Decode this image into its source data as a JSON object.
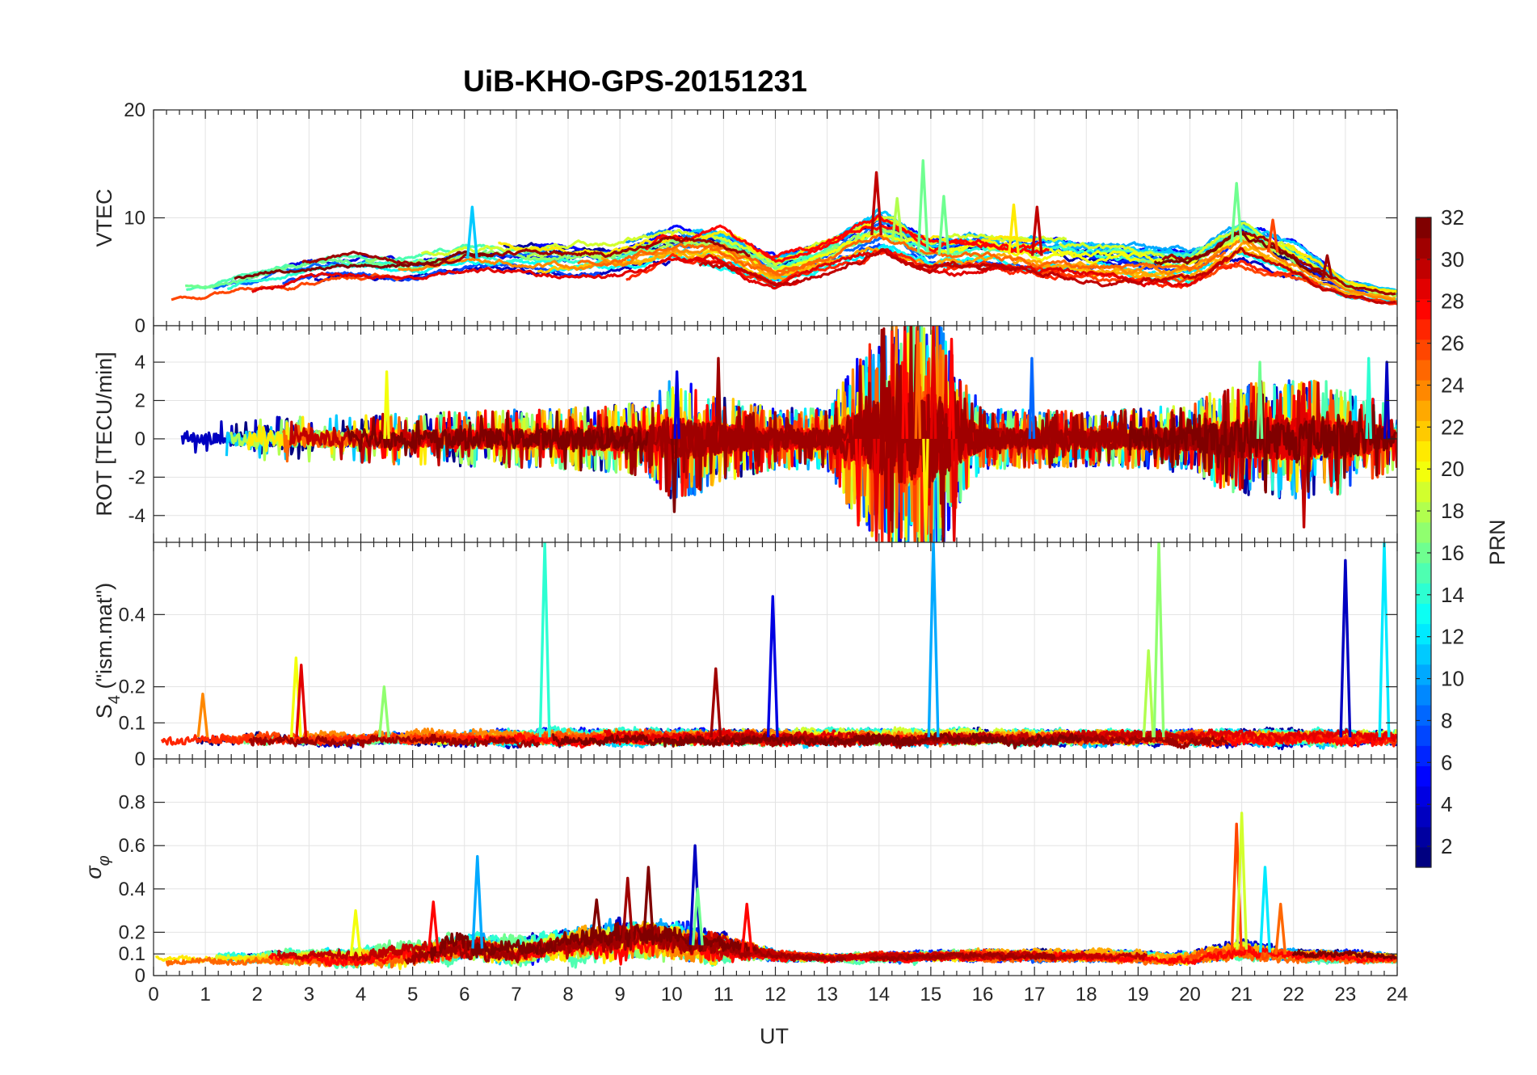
{
  "chart_data": {
    "type": "line",
    "title": "UiB-KHO-GPS-20151231",
    "xlabel": "UT",
    "x_ticks": [
      "0",
      "1",
      "2",
      "3",
      "4",
      "5",
      "6",
      "7",
      "8",
      "9",
      "10",
      "11",
      "12",
      "13",
      "14",
      "15",
      "16",
      "17",
      "18",
      "19",
      "20",
      "21",
      "22",
      "23",
      "24"
    ],
    "xlim": [
      0,
      24
    ],
    "grid": true,
    "colormap": "jet",
    "colorbar": {
      "label": "PRN",
      "range": [
        1,
        32
      ],
      "ticks": [
        "2",
        "4",
        "6",
        "8",
        "10",
        "12",
        "14",
        "16",
        "18",
        "20",
        "22",
        "24",
        "26",
        "28",
        "30",
        "32"
      ]
    },
    "panels": [
      {
        "ylabel": "VTEC",
        "ylim": [
          0,
          20
        ],
        "y_ticks": [
          "0",
          "10",
          "20"
        ],
        "envelope": {
          "x": [
            0,
            1,
            2,
            3,
            4,
            5,
            6,
            7,
            8,
            9,
            10,
            11,
            12,
            13,
            14,
            15,
            16,
            17,
            18,
            19,
            20,
            21,
            22,
            23,
            24
          ],
          "level": [
            3,
            3.2,
            4.2,
            5.2,
            5.6,
            5.4,
            6.2,
            6.3,
            6.0,
            6.2,
            7.5,
            7.2,
            5.0,
            6.5,
            8.5,
            6.5,
            6.8,
            6.5,
            6.0,
            5.6,
            5.4,
            8.0,
            6.0,
            3.4,
            2.6
          ],
          "spread": [
            0.8,
            1.0,
            1.2,
            1.4,
            1.4,
            1.4,
            1.6,
            1.6,
            1.7,
            1.7,
            1.9,
            1.9,
            1.6,
            1.6,
            2.2,
            1.8,
            1.9,
            2.0,
            1.9,
            1.8,
            1.8,
            2.1,
            1.8,
            0.9,
            0.8
          ]
        },
        "spikes": [
          {
            "x": 6.15,
            "y": 11.0,
            "prn": 11
          },
          {
            "x": 13.95,
            "y": 14.2,
            "prn": 30
          },
          {
            "x": 14.35,
            "y": 11.8,
            "prn": 18
          },
          {
            "x": 14.85,
            "y": 15.3,
            "prn": 16
          },
          {
            "x": 15.25,
            "y": 12.0,
            "prn": 16
          },
          {
            "x": 16.6,
            "y": 11.2,
            "prn": 21
          },
          {
            "x": 17.05,
            "y": 11.0,
            "prn": 30
          },
          {
            "x": 20.9,
            "y": 13.2,
            "prn": 16
          },
          {
            "x": 21.6,
            "y": 9.8,
            "prn": 26
          },
          {
            "x": 22.65,
            "y": 6.5,
            "prn": 31
          }
        ]
      },
      {
        "ylabel": "ROT [TECU/min]",
        "ylim": [
          -5.4,
          5.9
        ],
        "y_ticks": [
          "-4",
          "-2",
          "0",
          "2",
          "4"
        ],
        "envelope": {
          "x": [
            0,
            2,
            4,
            6,
            8,
            9.5,
            10,
            10.5,
            11,
            12,
            13,
            13.5,
            14,
            14.5,
            15,
            15.5,
            16,
            18,
            19,
            20,
            20.5,
            21,
            22,
            23,
            24
          ],
          "level": [
            0,
            0,
            0,
            0,
            0,
            0,
            0,
            0,
            0,
            0,
            0,
            0,
            0,
            0,
            0,
            0,
            0,
            0,
            0,
            0,
            0,
            0,
            0,
            0,
            0
          ],
          "spread": [
            0.5,
            0.7,
            0.8,
            0.9,
            1.0,
            1.2,
            2.0,
            1.8,
            1.4,
            1.0,
            1.0,
            2.5,
            3.5,
            4.5,
            4.5,
            2.5,
            1.0,
            0.9,
            1.0,
            1.1,
            1.6,
            1.8,
            2.0,
            1.8,
            1.0
          ]
        },
        "spikes": [
          {
            "x": 4.5,
            "y": 3.5,
            "prn": 20
          },
          {
            "x": 10.05,
            "y": -3.8,
            "prn": 32
          },
          {
            "x": 10.1,
            "y": 3.5,
            "prn": 4
          },
          {
            "x": 10.9,
            "y": 4.2,
            "prn": 31
          },
          {
            "x": 13.6,
            "y": -4.5,
            "prn": 28
          },
          {
            "x": 13.95,
            "y": -5.3,
            "prn": 29
          },
          {
            "x": 14.5,
            "y": 5.9,
            "prn": 28
          },
          {
            "x": 14.75,
            "y": 5.9,
            "prn": 25
          },
          {
            "x": 14.9,
            "y": -5.3,
            "prn": 21
          },
          {
            "x": 15.05,
            "y": 5.9,
            "prn": 29
          },
          {
            "x": 15.4,
            "y": 5.2,
            "prn": 28
          },
          {
            "x": 15.45,
            "y": -5.3,
            "prn": 29
          },
          {
            "x": 16.95,
            "y": 4.2,
            "prn": 8
          },
          {
            "x": 21.35,
            "y": 4.0,
            "prn": 16
          },
          {
            "x": 22.2,
            "y": -4.6,
            "prn": 30
          },
          {
            "x": 23.45,
            "y": 4.2,
            "prn": 14
          },
          {
            "x": 23.8,
            "y": 4.0,
            "prn": 3
          }
        ]
      },
      {
        "ylabel": "S4 (\"ism.mat\")",
        "ylabel_main": "S",
        "ylabel_sub": "4",
        "ylabel_rest": " (\"ism.mat\")",
        "ylim": [
          0,
          0.6
        ],
        "y_ticks": [
          "0",
          "0.1",
          "0.2",
          "0.4"
        ],
        "envelope": {
          "x": [
            0,
            4,
            8,
            12,
            16,
            20,
            24
          ],
          "level": [
            0.06,
            0.06,
            0.06,
            0.06,
            0.06,
            0.06,
            0.06
          ],
          "spread": [
            0.025,
            0.025,
            0.025,
            0.025,
            0.025,
            0.025,
            0.025
          ]
        },
        "spikes": [
          {
            "x": 0.95,
            "y": 0.18,
            "prn": 24
          },
          {
            "x": 2.75,
            "y": 0.28,
            "prn": 20
          },
          {
            "x": 2.85,
            "y": 0.26,
            "prn": 29
          },
          {
            "x": 4.45,
            "y": 0.2,
            "prn": 17
          },
          {
            "x": 7.55,
            "y": 0.6,
            "prn": 14
          },
          {
            "x": 10.85,
            "y": 0.25,
            "prn": 31
          },
          {
            "x": 11.95,
            "y": 0.45,
            "prn": 4
          },
          {
            "x": 15.05,
            "y": 0.6,
            "prn": 10
          },
          {
            "x": 19.2,
            "y": 0.3,
            "prn": 18
          },
          {
            "x": 19.4,
            "y": 0.6,
            "prn": 17
          },
          {
            "x": 23.0,
            "y": 0.55,
            "prn": 3
          },
          {
            "x": 23.75,
            "y": 0.6,
            "prn": 12
          }
        ]
      },
      {
        "ylabel": "σφ",
        "ylabel_main": "σ",
        "ylabel_sub": "φ",
        "ylim": [
          0,
          1
        ],
        "y_ticks": [
          "0",
          "0.1",
          "0.2",
          "0.4",
          "0.6",
          "0.8"
        ],
        "envelope": {
          "x": [
            0,
            2,
            4,
            5,
            6,
            7,
            8,
            9,
            10,
            11,
            12,
            13,
            16,
            18,
            20,
            21,
            22,
            23,
            24
          ],
          "level": [
            0.08,
            0.08,
            0.09,
            0.1,
            0.13,
            0.11,
            0.14,
            0.16,
            0.16,
            0.12,
            0.09,
            0.08,
            0.09,
            0.09,
            0.08,
            0.12,
            0.09,
            0.09,
            0.08
          ],
          "spread": [
            0.02,
            0.03,
            0.05,
            0.06,
            0.08,
            0.06,
            0.08,
            0.1,
            0.1,
            0.07,
            0.03,
            0.02,
            0.03,
            0.03,
            0.03,
            0.05,
            0.03,
            0.03,
            0.02
          ]
        },
        "spikes": [
          {
            "x": 3.9,
            "y": 0.3,
            "prn": 20
          },
          {
            "x": 5.4,
            "y": 0.34,
            "prn": 28
          },
          {
            "x": 6.25,
            "y": 0.55,
            "prn": 10
          },
          {
            "x": 8.55,
            "y": 0.35,
            "prn": 32
          },
          {
            "x": 9.15,
            "y": 0.45,
            "prn": 31
          },
          {
            "x": 9.55,
            "y": 0.5,
            "prn": 32
          },
          {
            "x": 10.45,
            "y": 0.6,
            "prn": 3
          },
          {
            "x": 10.5,
            "y": 0.4,
            "prn": 16
          },
          {
            "x": 11.45,
            "y": 0.33,
            "prn": 28
          },
          {
            "x": 20.9,
            "y": 0.7,
            "prn": 26
          },
          {
            "x": 21.0,
            "y": 0.75,
            "prn": 19
          },
          {
            "x": 21.45,
            "y": 0.5,
            "prn": 12
          },
          {
            "x": 21.75,
            "y": 0.33,
            "prn": 25
          }
        ]
      }
    ]
  }
}
